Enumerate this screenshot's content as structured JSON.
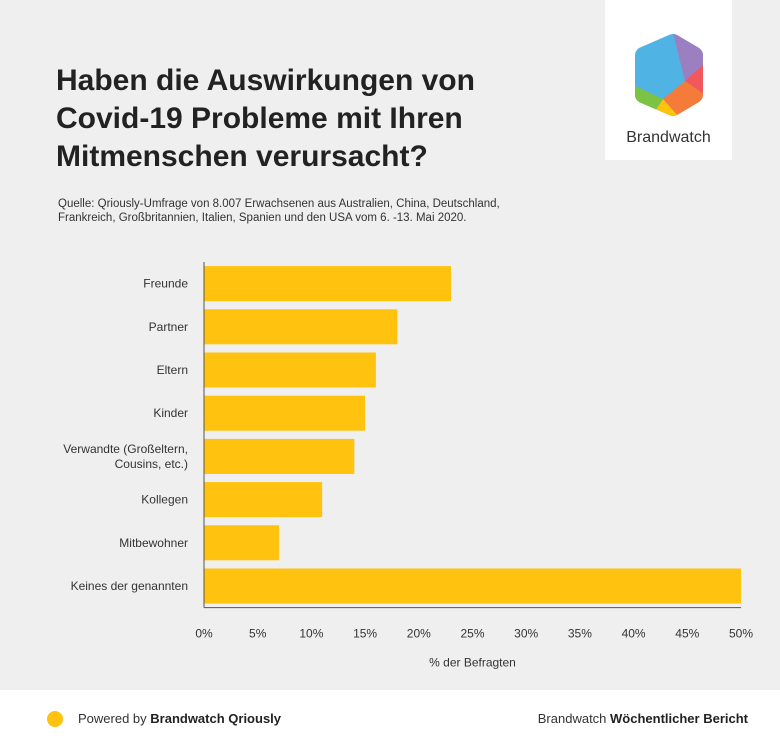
{
  "header": {
    "title_lines": [
      "Haben die Auswirkungen von",
      "Covid-19 Probleme mit Ihren",
      "Mitmenschen verursacht?"
    ],
    "source_lines": [
      "Quelle: Qriously-Umfrage von 8.007 Erwachsenen aus Australien, China, Deutschland,",
      "Frankreich, Großbritannien, Italien, Spanien und den USA vom 6. -13. Mai 2020."
    ]
  },
  "logo": {
    "text": "Brandwatch",
    "icon": "brandwatch-hexagon-icon"
  },
  "chart_data": {
    "type": "bar",
    "orientation": "horizontal",
    "categories": [
      [
        "Freunde"
      ],
      [
        "Partner"
      ],
      [
        "Eltern"
      ],
      [
        "Kinder"
      ],
      [
        "Verwandte (Großeltern,",
        "Cousins, etc.)"
      ],
      [
        "Kollegen"
      ],
      [
        "Mitbewohner"
      ],
      [
        "Keines der genannten"
      ]
    ],
    "values": [
      23,
      18,
      16,
      15,
      14,
      11,
      7,
      50
    ],
    "xlabel": "% der Befragten",
    "ylabel": "",
    "xlim": [
      0,
      50
    ],
    "xticks": [
      "0%",
      "5%",
      "10%",
      "15%",
      "20%",
      "25%",
      "30%",
      "35%",
      "40%",
      "45%",
      "50%"
    ],
    "grid": false,
    "bar_color": "#ffc20e"
  },
  "footer": {
    "left_prefix": "Powered by ",
    "left_brand": "Brandwatch Qriously",
    "right_prefix": "Brandwatch ",
    "right_bold": "Wöchentlicher Bericht",
    "dot_color": "#ffc20e"
  }
}
